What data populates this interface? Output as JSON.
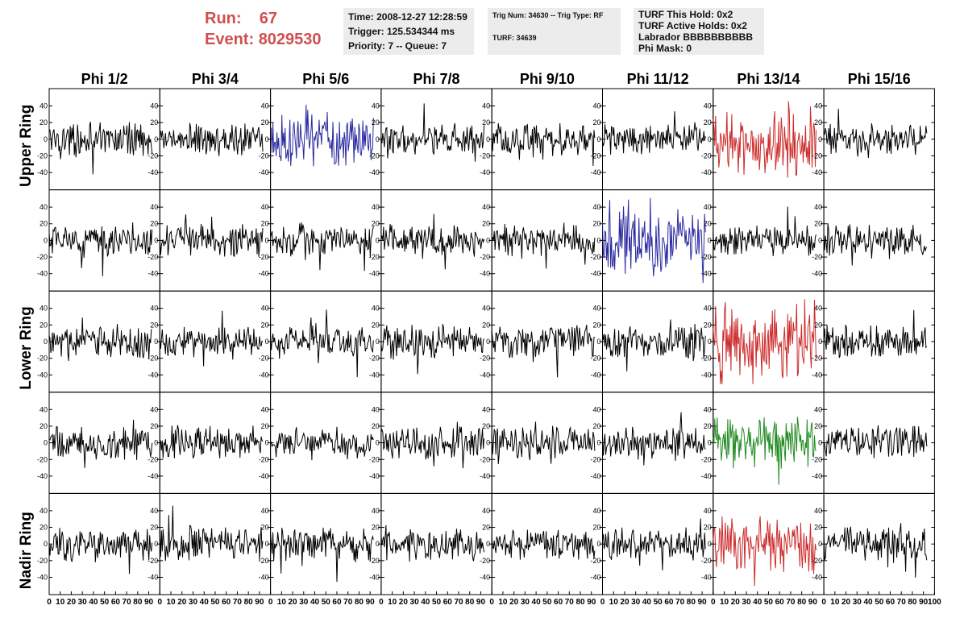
{
  "header": {
    "run_label": "Run:",
    "run_value": "67",
    "event_label": "Event:",
    "event_value": "8029530",
    "time_line": "Time: 2008-12-27 12:28:59",
    "trigger_line": "Trigger: 125.534344 ms",
    "priority_line": "Priority: 7 -- Queue: 7",
    "trig_num_line": "Trig Num: 34630 -- Trig Type: RF",
    "turf_line": "TURF: 34639",
    "turf_this_hold": "TURF This Hold: 0x2",
    "turf_active_holds": "TURF Active Holds: 0x2",
    "labrador": "Labrador BBBBBBBBBB",
    "phi_mask": "Phi Mask: 0"
  },
  "chart_data": {
    "type": "line",
    "columns": [
      "Phi 1/2",
      "Phi 3/4",
      "Phi 5/6",
      "Phi 7/8",
      "Phi 9/10",
      "Phi 11/12",
      "Phi 13/14",
      "Phi 15/16"
    ],
    "rows": [
      "Upper Ring",
      "",
      "Lower Ring",
      "",
      "Nadir Ring"
    ],
    "ylim": [
      -55,
      55
    ],
    "yticks": [
      -40,
      -20,
      0,
      20,
      40
    ],
    "xlim": [
      0,
      100
    ],
    "xticks": [
      0,
      10,
      20,
      30,
      40,
      50,
      60,
      70,
      80,
      90,
      100
    ],
    "xtick_labels": [
      "0",
      "10",
      "20",
      "30",
      "40",
      "50",
      "60",
      "70",
      "80",
      "90",
      "100"
    ],
    "samples": 128,
    "colors": {
      "default": "#000000",
      "blue": "#2a2aa0",
      "red": "#cc2a2a",
      "green": "#1f8a1f"
    },
    "highlights": [
      {
        "row": 0,
        "col": 2,
        "color": "blue",
        "amplitude": 24
      },
      {
        "row": 0,
        "col": 6,
        "color": "red",
        "amplitude": 30
      },
      {
        "row": 1,
        "col": 5,
        "color": "blue",
        "amplitude": 26
      },
      {
        "row": 2,
        "col": 6,
        "color": "red",
        "amplitude": 34
      },
      {
        "row": 3,
        "col": 6,
        "color": "green",
        "amplitude": 22
      },
      {
        "row": 4,
        "col": 6,
        "color": "red",
        "amplitude": 24
      }
    ],
    "default_amplitude": 14,
    "grid": false,
    "legend": "none"
  }
}
